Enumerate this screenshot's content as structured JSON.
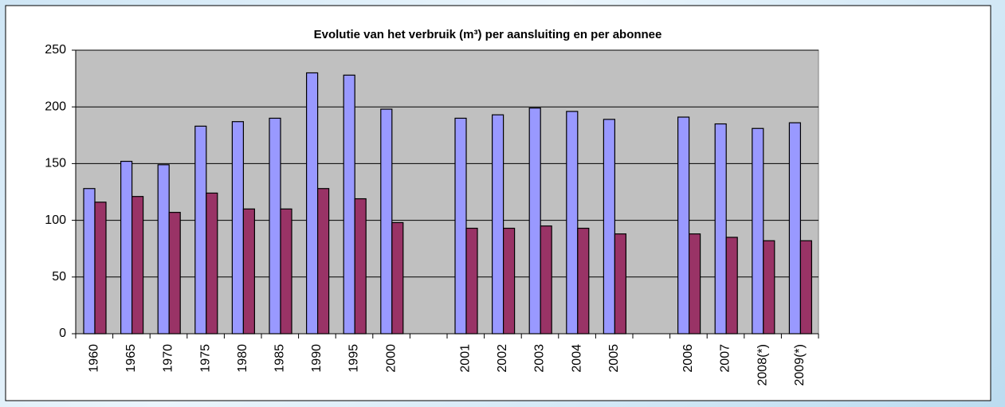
{
  "chart_data": {
    "type": "bar",
    "title": "Evolutie van het verbruik (m³) per aansluiting en per abonnee",
    "categories": [
      "1960",
      "1965",
      "1970",
      "1975",
      "1980",
      "1985",
      "1990",
      "1995",
      "2000",
      null,
      "2001",
      "2002",
      "2003",
      "2004",
      "2005",
      null,
      "2006",
      "2007",
      "2008(*)",
      "2009(*)"
    ],
    "series": [
      {
        "color": "#9999ff",
        "values": [
          128,
          152,
          149,
          183,
          187,
          190,
          230,
          228,
          198,
          null,
          190,
          193,
          199,
          196,
          189,
          null,
          191,
          185,
          181,
          186
        ]
      },
      {
        "color": "#993366",
        "values": [
          116,
          121,
          107,
          124,
          110,
          110,
          128,
          119,
          98,
          null,
          93,
          93,
          95,
          93,
          88,
          null,
          88,
          85,
          82,
          82
        ]
      }
    ],
    "ylim": [
      0,
      250
    ],
    "yticks": [
      0,
      50,
      100,
      150,
      200,
      250
    ],
    "grid": true
  }
}
